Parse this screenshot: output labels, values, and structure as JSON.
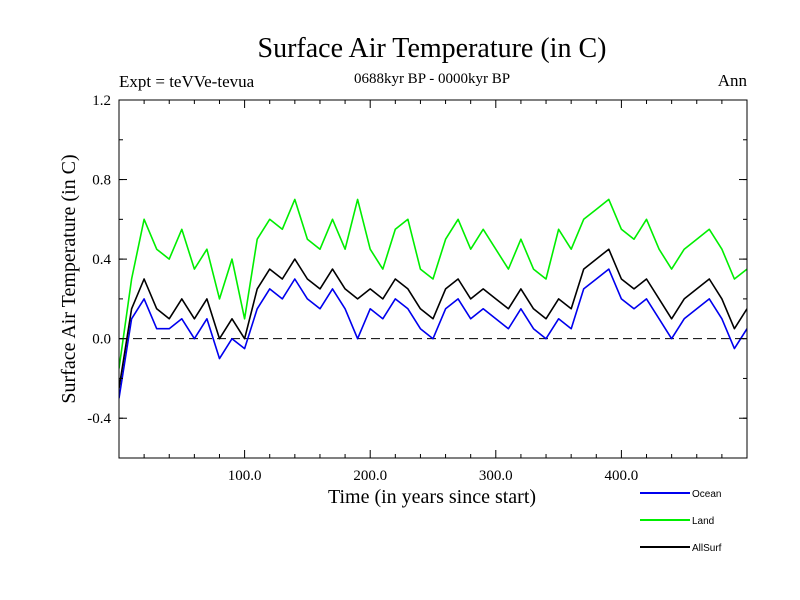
{
  "chart_data": {
    "type": "line",
    "title": "Surface Air Temperature (in C)",
    "subtitle": "0688kyr BP - 0000kyr BP",
    "left_note": "Expt = teVVe-tevua",
    "right_note": "Ann",
    "xlabel": "Time (in years since start)",
    "ylabel": "Surface Air Temperature (in C)",
    "xlim": [
      0,
      500
    ],
    "ylim": [
      -0.6,
      1.2
    ],
    "xticks": [
      100,
      200,
      300,
      400
    ],
    "xtick_labels": [
      "100.0",
      "200.0",
      "300.0",
      "400.0"
    ],
    "yticks": [
      -0.4,
      0.0,
      0.4,
      0.8,
      1.2
    ],
    "ytick_labels": [
      "-0.4",
      "0.0",
      "0.4",
      "0.8",
      "1.2"
    ],
    "zero_line": "dashed",
    "grid": false,
    "legend_position": "bottom-right",
    "x": [
      0,
      10,
      20,
      30,
      40,
      50,
      60,
      70,
      80,
      90,
      100,
      110,
      120,
      130,
      140,
      150,
      160,
      170,
      180,
      190,
      200,
      210,
      220,
      230,
      240,
      250,
      260,
      270,
      280,
      290,
      300,
      310,
      320,
      330,
      340,
      350,
      360,
      370,
      380,
      390,
      400,
      410,
      420,
      430,
      440,
      450,
      460,
      470,
      480,
      490,
      500
    ],
    "series": [
      {
        "name": "Land",
        "color": "#00ee00",
        "values": [
          -0.15,
          0.3,
          0.6,
          0.45,
          0.4,
          0.55,
          0.35,
          0.45,
          0.2,
          0.4,
          0.1,
          0.5,
          0.6,
          0.55,
          0.7,
          0.5,
          0.45,
          0.6,
          0.45,
          0.7,
          0.45,
          0.35,
          0.55,
          0.6,
          0.35,
          0.3,
          0.5,
          0.6,
          0.45,
          0.55,
          0.45,
          0.35,
          0.5,
          0.35,
          0.3,
          0.55,
          0.45,
          0.6,
          0.65,
          0.7,
          0.55,
          0.5,
          0.6,
          0.45,
          0.35,
          0.45,
          0.5,
          0.55,
          0.45,
          0.3,
          0.35
        ]
      },
      {
        "name": "Ocean",
        "color": "#0000ee",
        "values": [
          -0.3,
          0.1,
          0.2,
          0.05,
          0.05,
          0.1,
          0.0,
          0.1,
          -0.1,
          0.0,
          -0.05,
          0.15,
          0.25,
          0.2,
          0.3,
          0.2,
          0.15,
          0.25,
          0.15,
          0.0,
          0.15,
          0.1,
          0.2,
          0.15,
          0.05,
          0.0,
          0.15,
          0.2,
          0.1,
          0.15,
          0.1,
          0.05,
          0.15,
          0.05,
          0.0,
          0.1,
          0.05,
          0.25,
          0.3,
          0.35,
          0.2,
          0.15,
          0.2,
          0.1,
          0.0,
          0.1,
          0.15,
          0.2,
          0.1,
          -0.05,
          0.05
        ]
      },
      {
        "name": "AllSurf",
        "color": "#000000",
        "values": [
          -0.25,
          0.15,
          0.3,
          0.15,
          0.1,
          0.2,
          0.1,
          0.2,
          0.0,
          0.1,
          0.0,
          0.25,
          0.35,
          0.3,
          0.4,
          0.3,
          0.25,
          0.35,
          0.25,
          0.2,
          0.25,
          0.2,
          0.3,
          0.25,
          0.15,
          0.1,
          0.25,
          0.3,
          0.2,
          0.25,
          0.2,
          0.15,
          0.25,
          0.15,
          0.1,
          0.2,
          0.15,
          0.35,
          0.4,
          0.45,
          0.3,
          0.25,
          0.3,
          0.2,
          0.1,
          0.2,
          0.25,
          0.3,
          0.2,
          0.05,
          0.15
        ]
      }
    ]
  }
}
